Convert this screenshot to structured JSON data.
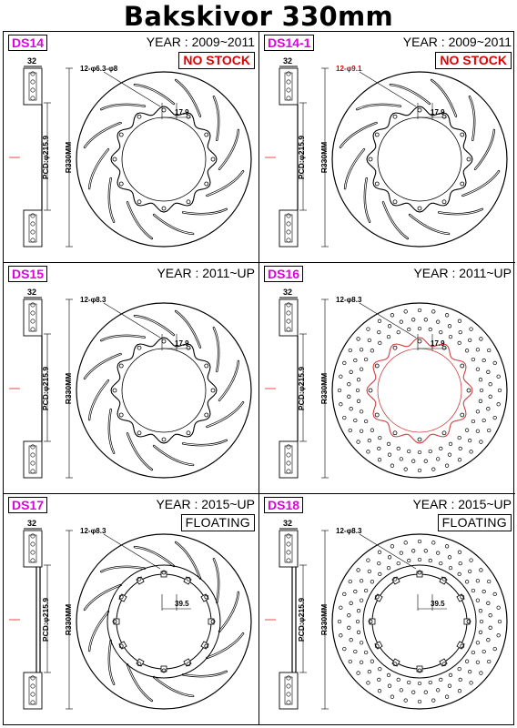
{
  "title": "Bakskivor 330mm",
  "colors": {
    "code": "#e000e0",
    "no_stock": "#e00000",
    "line": "#000000",
    "ring_highlight": "#d04040"
  },
  "panels": [
    {
      "code": "DS14",
      "year": "YEAR : 2009~2011",
      "badge": "NO STOCK",
      "badge_type": "nostock",
      "hole_label": "12-φ6.3-φ8",
      "hole_label_red": false,
      "thickness": "32",
      "pcd": "PCD:φ215.9",
      "radius": "R330MM",
      "dim": "17.9",
      "hub": "scalloped",
      "surface": "slotted",
      "bell": "standard"
    },
    {
      "code": "DS14-1",
      "year": "YEAR : 2009~2011",
      "badge": "NO STOCK",
      "badge_type": "nostock",
      "hole_label": "12-φ9.1",
      "hole_label_red": true,
      "thickness": "32",
      "pcd": "PCD:φ215.9",
      "radius": "R330MM",
      "dim": "17.9",
      "hub": "scalloped",
      "surface": "slotted",
      "bell": "standard"
    },
    {
      "code": "DS15",
      "year": "YEAR : 2011~UP",
      "badge": "",
      "badge_type": "",
      "hole_label": "12-φ8.3",
      "hole_label_red": false,
      "thickness": "32",
      "pcd": "PCD:φ215.9",
      "radius": "R330MM",
      "dim": "17.9",
      "hub": "scalloped",
      "surface": "slotted",
      "bell": "standard"
    },
    {
      "code": "DS16",
      "year": "YEAR : 2011~UP",
      "badge": "",
      "badge_type": "",
      "hole_label": "12-φ8.3",
      "hole_label_red": false,
      "thickness": "32",
      "pcd": "PCD:φ215.9",
      "radius": "R330MM",
      "dim": "17.9",
      "hub": "scalloped-red",
      "surface": "drilled",
      "bell": "standard"
    },
    {
      "code": "DS17",
      "year": "YEAR : 2015~UP",
      "badge": "FLOATING",
      "badge_type": "floating",
      "hole_label": "12-φ8.3",
      "hole_label_red": false,
      "thickness": "32",
      "pcd": "PCD:φ215.9",
      "radius": "R330MM",
      "dim": "39.5",
      "hub": "floating",
      "surface": "slotted",
      "bell": "floating"
    },
    {
      "code": "DS18",
      "year": "YEAR : 2015~UP",
      "badge": "FLOATING",
      "badge_type": "floating",
      "hole_label": "12-φ8.3",
      "hole_label_red": false,
      "thickness": "32",
      "pcd": "PCD:φ215.9",
      "radius": "R330MM",
      "dim": "39.5",
      "hub": "floating",
      "surface": "drilled",
      "bell": "floating"
    }
  ]
}
